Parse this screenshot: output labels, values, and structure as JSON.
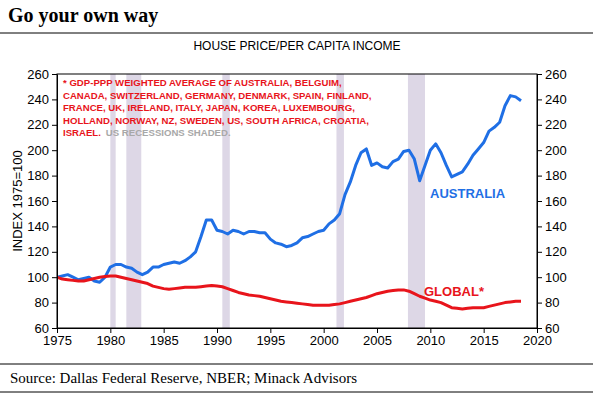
{
  "chart_data": {
    "type": "line",
    "title": "Go your own way",
    "subtitle": "HOUSE PRICE/PER CAPITA INCOME",
    "ylabel": "INDEX 1975=100",
    "source": "Source: Dallas Federal Reserve, NBER; Minack Advisors",
    "annotation_lines": [
      "* GDP-PPP WEIGHTED AVERAGE OF AUSTRALIA, BELGUIM,",
      "CANADA, SWITZERLAND, GERMANY, DENMARK, SPAIN, FINLAND,",
      "FRANCE, UK, IRELAND, ITALY, JAPAN, KOREA, LUXEMBOURG,",
      "HOLLAND, NORWAY, NZ, SWEDEN, US, SOUTH AFRICA, CROATIA,",
      "ISRAEL."
    ],
    "recession_note": "US RECESSIONS SHADED.",
    "recessions": [
      [
        1980.0,
        1980.5
      ],
      [
        1981.5,
        1982.9
      ],
      [
        1990.5,
        1991.2
      ],
      [
        2001.2,
        2001.9
      ],
      [
        2007.9,
        2009.5
      ]
    ],
    "x": [
      1975.0,
      1975.5,
      1976.0,
      1976.5,
      1977.0,
      1977.5,
      1978.0,
      1978.5,
      1979.0,
      1979.5,
      1980.0,
      1980.5,
      1981.0,
      1981.5,
      1982.0,
      1982.5,
      1983.0,
      1983.5,
      1984.0,
      1984.5,
      1985.0,
      1985.5,
      1986.0,
      1986.5,
      1987.0,
      1987.5,
      1988.0,
      1988.5,
      1989.0,
      1989.5,
      1990.0,
      1990.5,
      1991.0,
      1991.5,
      1992.0,
      1992.5,
      1993.0,
      1993.5,
      1994.0,
      1994.5,
      1995.0,
      1995.5,
      1996.0,
      1996.5,
      1997.0,
      1997.5,
      1998.0,
      1998.5,
      1999.0,
      1999.5,
      2000.0,
      2000.5,
      2001.0,
      2001.5,
      2002.0,
      2002.5,
      2003.0,
      2003.5,
      2004.0,
      2004.5,
      2005.0,
      2005.5,
      2006.0,
      2006.5,
      2007.0,
      2007.5,
      2008.0,
      2008.5,
      2009.0,
      2009.5,
      2010.0,
      2010.5,
      2011.0,
      2011.5,
      2012.0,
      2012.5,
      2013.0,
      2013.5,
      2014.0,
      2014.5,
      2015.0,
      2015.5,
      2016.0,
      2016.5,
      2017.0,
      2017.5,
      2018.0,
      2018.5
    ],
    "series": [
      {
        "name": "AUSTRALIA",
        "color": "#1f6fe5",
        "values": [
          100,
          101,
          102,
          100,
          98,
          99,
          100,
          97,
          96,
          100,
          108,
          110,
          110,
          108,
          107,
          104,
          102,
          104,
          108,
          108,
          110,
          111,
          112,
          111,
          113,
          116,
          120,
          132,
          145,
          145,
          137,
          136,
          134,
          137,
          136,
          134,
          136,
          136,
          135,
          135,
          130,
          127,
          126,
          124,
          125,
          127,
          131,
          132,
          134,
          136,
          137,
          142,
          145,
          150,
          165,
          175,
          188,
          198,
          201,
          188,
          190,
          187,
          186,
          191,
          193,
          199,
          200,
          193,
          176,
          188,
          200,
          205,
          198,
          188,
          179,
          181,
          183,
          189,
          196,
          201,
          206,
          215,
          218,
          222,
          235,
          243,
          242,
          239
        ]
      },
      {
        "name": "GLOBAL*",
        "color": "#e8141b",
        "values": [
          100,
          98.5,
          98,
          97.5,
          97,
          97,
          98,
          99,
          100,
          100.5,
          101,
          101,
          100,
          99,
          98,
          97,
          96,
          95,
          93,
          92,
          91,
          90.5,
          91,
          91.5,
          92,
          92,
          92,
          92.5,
          93,
          93.5,
          93,
          92.5,
          91,
          89.5,
          88,
          87,
          86,
          85.5,
          85,
          84,
          83,
          82,
          81,
          80.5,
          80,
          79.5,
          79,
          78.5,
          78,
          78,
          78,
          78,
          78.5,
          79,
          80,
          81,
          82,
          83,
          84,
          85.5,
          87,
          88,
          89,
          89.5,
          90,
          90,
          89,
          87,
          85,
          83.5,
          82,
          81,
          80,
          78,
          76,
          75.5,
          75,
          75.5,
          76,
          76,
          76,
          77,
          78,
          79,
          80,
          80.5,
          81,
          81
        ]
      }
    ],
    "xlim": [
      1975,
      2020
    ],
    "xticks": [
      1975,
      1980,
      1985,
      1990,
      1995,
      2000,
      2005,
      2010,
      2015,
      2020
    ],
    "ylim": [
      60,
      260
    ],
    "yticks": [
      60,
      80,
      100,
      120,
      140,
      160,
      180,
      200,
      220,
      240,
      260
    ],
    "y2lim": [
      60,
      260
    ],
    "y2ticks": [
      60,
      80,
      100,
      120,
      140,
      160,
      180,
      200,
      220,
      240,
      260
    ]
  }
}
